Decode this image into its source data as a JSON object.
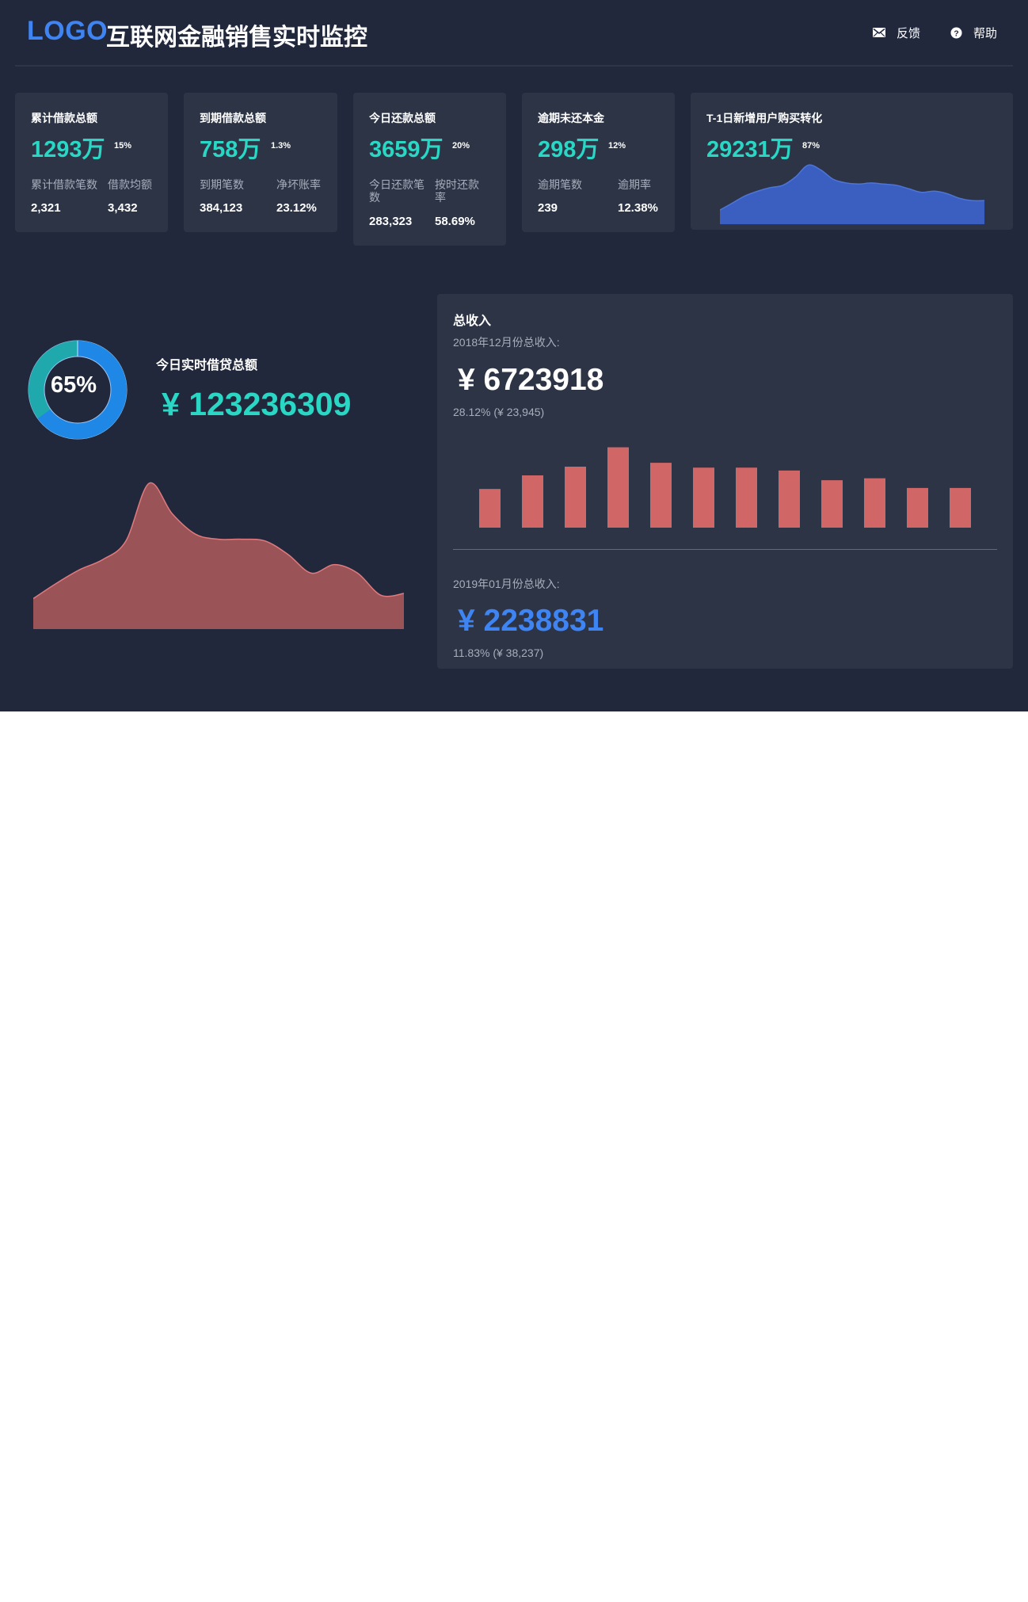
{
  "header": {
    "logo": "LOGO",
    "title": "互联网金融销售实时监控",
    "feedback_label": "反馈",
    "help_label": "帮助"
  },
  "cards": [
    {
      "title": "累计借款总额",
      "main_value": "1293万",
      "percent": "15%",
      "sub": [
        {
          "label": "累计借款笔数",
          "value": "2,321"
        },
        {
          "label": "借款均额",
          "value": "3,432"
        }
      ]
    },
    {
      "title": "到期借款总额",
      "main_value": "758万",
      "percent": "1.3%",
      "sub": [
        {
          "label": "到期笔数",
          "value": "384,123"
        },
        {
          "label": "净坏账率",
          "value": "23.12%"
        }
      ]
    },
    {
      "title": "今日还款总额",
      "main_value": "3659万",
      "percent": "20%",
      "sub": [
        {
          "label": "今日还款笔数",
          "value": "283,323"
        },
        {
          "label": "按时还款率",
          "value": "58.69%"
        }
      ]
    },
    {
      "title": "逾期未还本金",
      "main_value": "298万",
      "percent": "12%",
      "sub": [
        {
          "label": "逾期笔数",
          "value": "239"
        },
        {
          "label": "逾期率",
          "value": "12.38%"
        }
      ]
    },
    {
      "title": "T-1日新增用户购买转化",
      "main_value": "29231万",
      "percent": "87%",
      "sparkline_color": "#3b5fc0"
    }
  ],
  "today": {
    "title": "今日实时借贷总额",
    "value": "¥ 123236309",
    "donut_percent": 65,
    "donut_label": "65%",
    "donut_colors": {
      "main": "#1f87e6",
      "rest": "#1fa9ad"
    },
    "area_color": "#9a5458"
  },
  "income": {
    "title": "总收入",
    "dec_label": "2018年12月份总收入:",
    "dec_value": "¥ 6723918",
    "dec_sub": "28.12% (¥ 23,945)",
    "jan_label": "2019年01月份总收入:",
    "jan_value": "¥ 2238831",
    "jan_sub": "11.83% (¥ 38,237)",
    "bar_color": "#d06666",
    "value_colors": {
      "dec": "#ffffff",
      "jan": "#3f84f3"
    }
  },
  "chart_data": [
    {
      "type": "area",
      "values": [
        12,
        18,
        24,
        28,
        31,
        33,
        40,
        50,
        46,
        38,
        35,
        34,
        35,
        34,
        33,
        30,
        27,
        28,
        26,
        22,
        20,
        20
      ],
      "ylim": [
        0,
        55
      ]
    },
    {
      "type": "area",
      "values": [
        18,
        27,
        35,
        41,
        52,
        86,
        68,
        56,
        53,
        53,
        52,
        44,
        33,
        38,
        33,
        20,
        21
      ],
      "ylim": [
        0,
        100
      ]
    },
    {
      "type": "bar",
      "values": [
        40,
        54,
        63,
        83,
        67,
        62,
        62,
        59,
        49,
        51,
        41,
        41
      ],
      "ylim": [
        0,
        90
      ]
    }
  ]
}
